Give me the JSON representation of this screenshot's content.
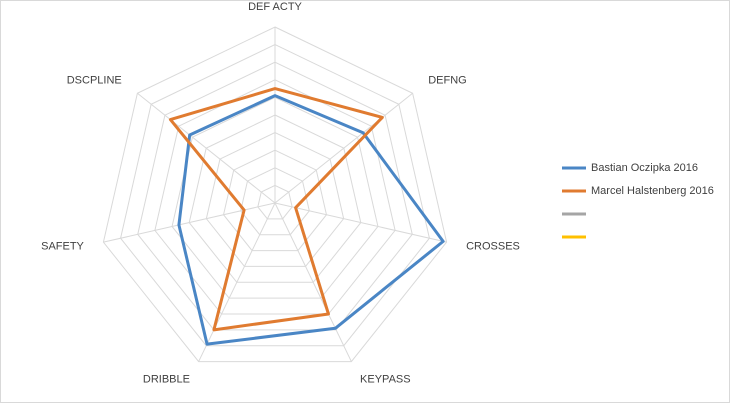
{
  "chart_data": {
    "type": "radar",
    "categories": [
      "DEF ACTY",
      "DEFNG",
      "CROSSES",
      "KEYPASS",
      "DRIBBLE",
      "SAFETY",
      "DSCPLINE"
    ],
    "series": [
      {
        "name": "Bastian Oczipka 2016",
        "color": "#4a86c5",
        "values": [
          6.1,
          6.4,
          9.8,
          7.9,
          8.9,
          5.6,
          6.2
        ]
      },
      {
        "name": "Marcel Halstenberg 2016",
        "color": "#e07b30",
        "values": [
          6.5,
          7.8,
          1.2,
          7.0,
          8.0,
          1.8,
          7.6
        ]
      },
      {
        "color": "#a5a5a5",
        "values": [
          null,
          null,
          null,
          null,
          null,
          null,
          null
        ]
      },
      {
        "color": "#ffc000",
        "values": [
          null,
          null,
          null,
          null,
          null,
          null,
          null
        ]
      }
    ],
    "ylim": [
      0,
      10
    ],
    "yticks": [
      0,
      1,
      2,
      3,
      4,
      5,
      6,
      7,
      8,
      9,
      10
    ],
    "grid": true,
    "legend": "right"
  }
}
